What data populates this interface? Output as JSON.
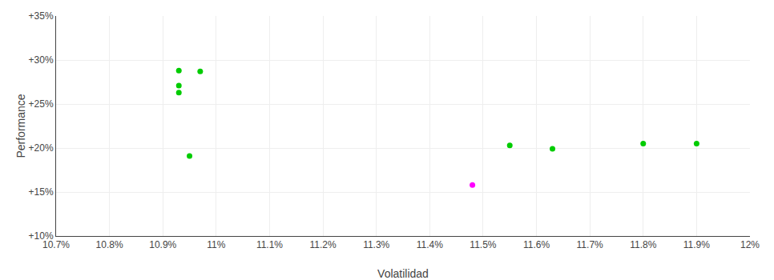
{
  "chart_data": {
    "type": "scatter",
    "xlabel": "Volatilidad",
    "ylabel": "Performance",
    "series": [
      {
        "color": "#00cc00",
        "x": [
          0.1093,
          0.1097,
          0.1093,
          0.1093,
          0.1095,
          0.1155,
          0.1163,
          0.118,
          0.119
        ],
        "values": [
          0.288,
          0.287,
          0.271,
          0.263,
          0.191,
          0.203,
          0.199,
          0.205,
          0.205
        ]
      },
      {
        "color": "#ff00ff",
        "x": [
          0.1148
        ],
        "values": [
          0.158
        ]
      }
    ],
    "xlim": [
      0.107,
      0.12
    ],
    "ylim": [
      0.1,
      0.35
    ],
    "xticks": [
      {
        "value": 0.107,
        "label": "10.7%"
      },
      {
        "value": 0.108,
        "label": "10.8%"
      },
      {
        "value": 0.109,
        "label": "10.9%"
      },
      {
        "value": 0.11,
        "label": "11%"
      },
      {
        "value": 0.111,
        "label": "11.1%"
      },
      {
        "value": 0.112,
        "label": "11.2%"
      },
      {
        "value": 0.113,
        "label": "11.3%"
      },
      {
        "value": 0.114,
        "label": "11.4%"
      },
      {
        "value": 0.115,
        "label": "11.5%"
      },
      {
        "value": 0.116,
        "label": "11.6%"
      },
      {
        "value": 0.117,
        "label": "11.7%"
      },
      {
        "value": 0.118,
        "label": "11.8%"
      },
      {
        "value": 0.119,
        "label": "11.9%"
      },
      {
        "value": 0.12,
        "label": "12%"
      }
    ],
    "yticks": [
      {
        "value": 0.1,
        "label": "+10%"
      },
      {
        "value": 0.15,
        "label": "+15%"
      },
      {
        "value": 0.2,
        "label": "+20%"
      },
      {
        "value": 0.25,
        "label": "+25%"
      },
      {
        "value": 0.3,
        "label": "+30%"
      },
      {
        "value": 0.35,
        "label": "+35%"
      }
    ],
    "grid": true
  }
}
